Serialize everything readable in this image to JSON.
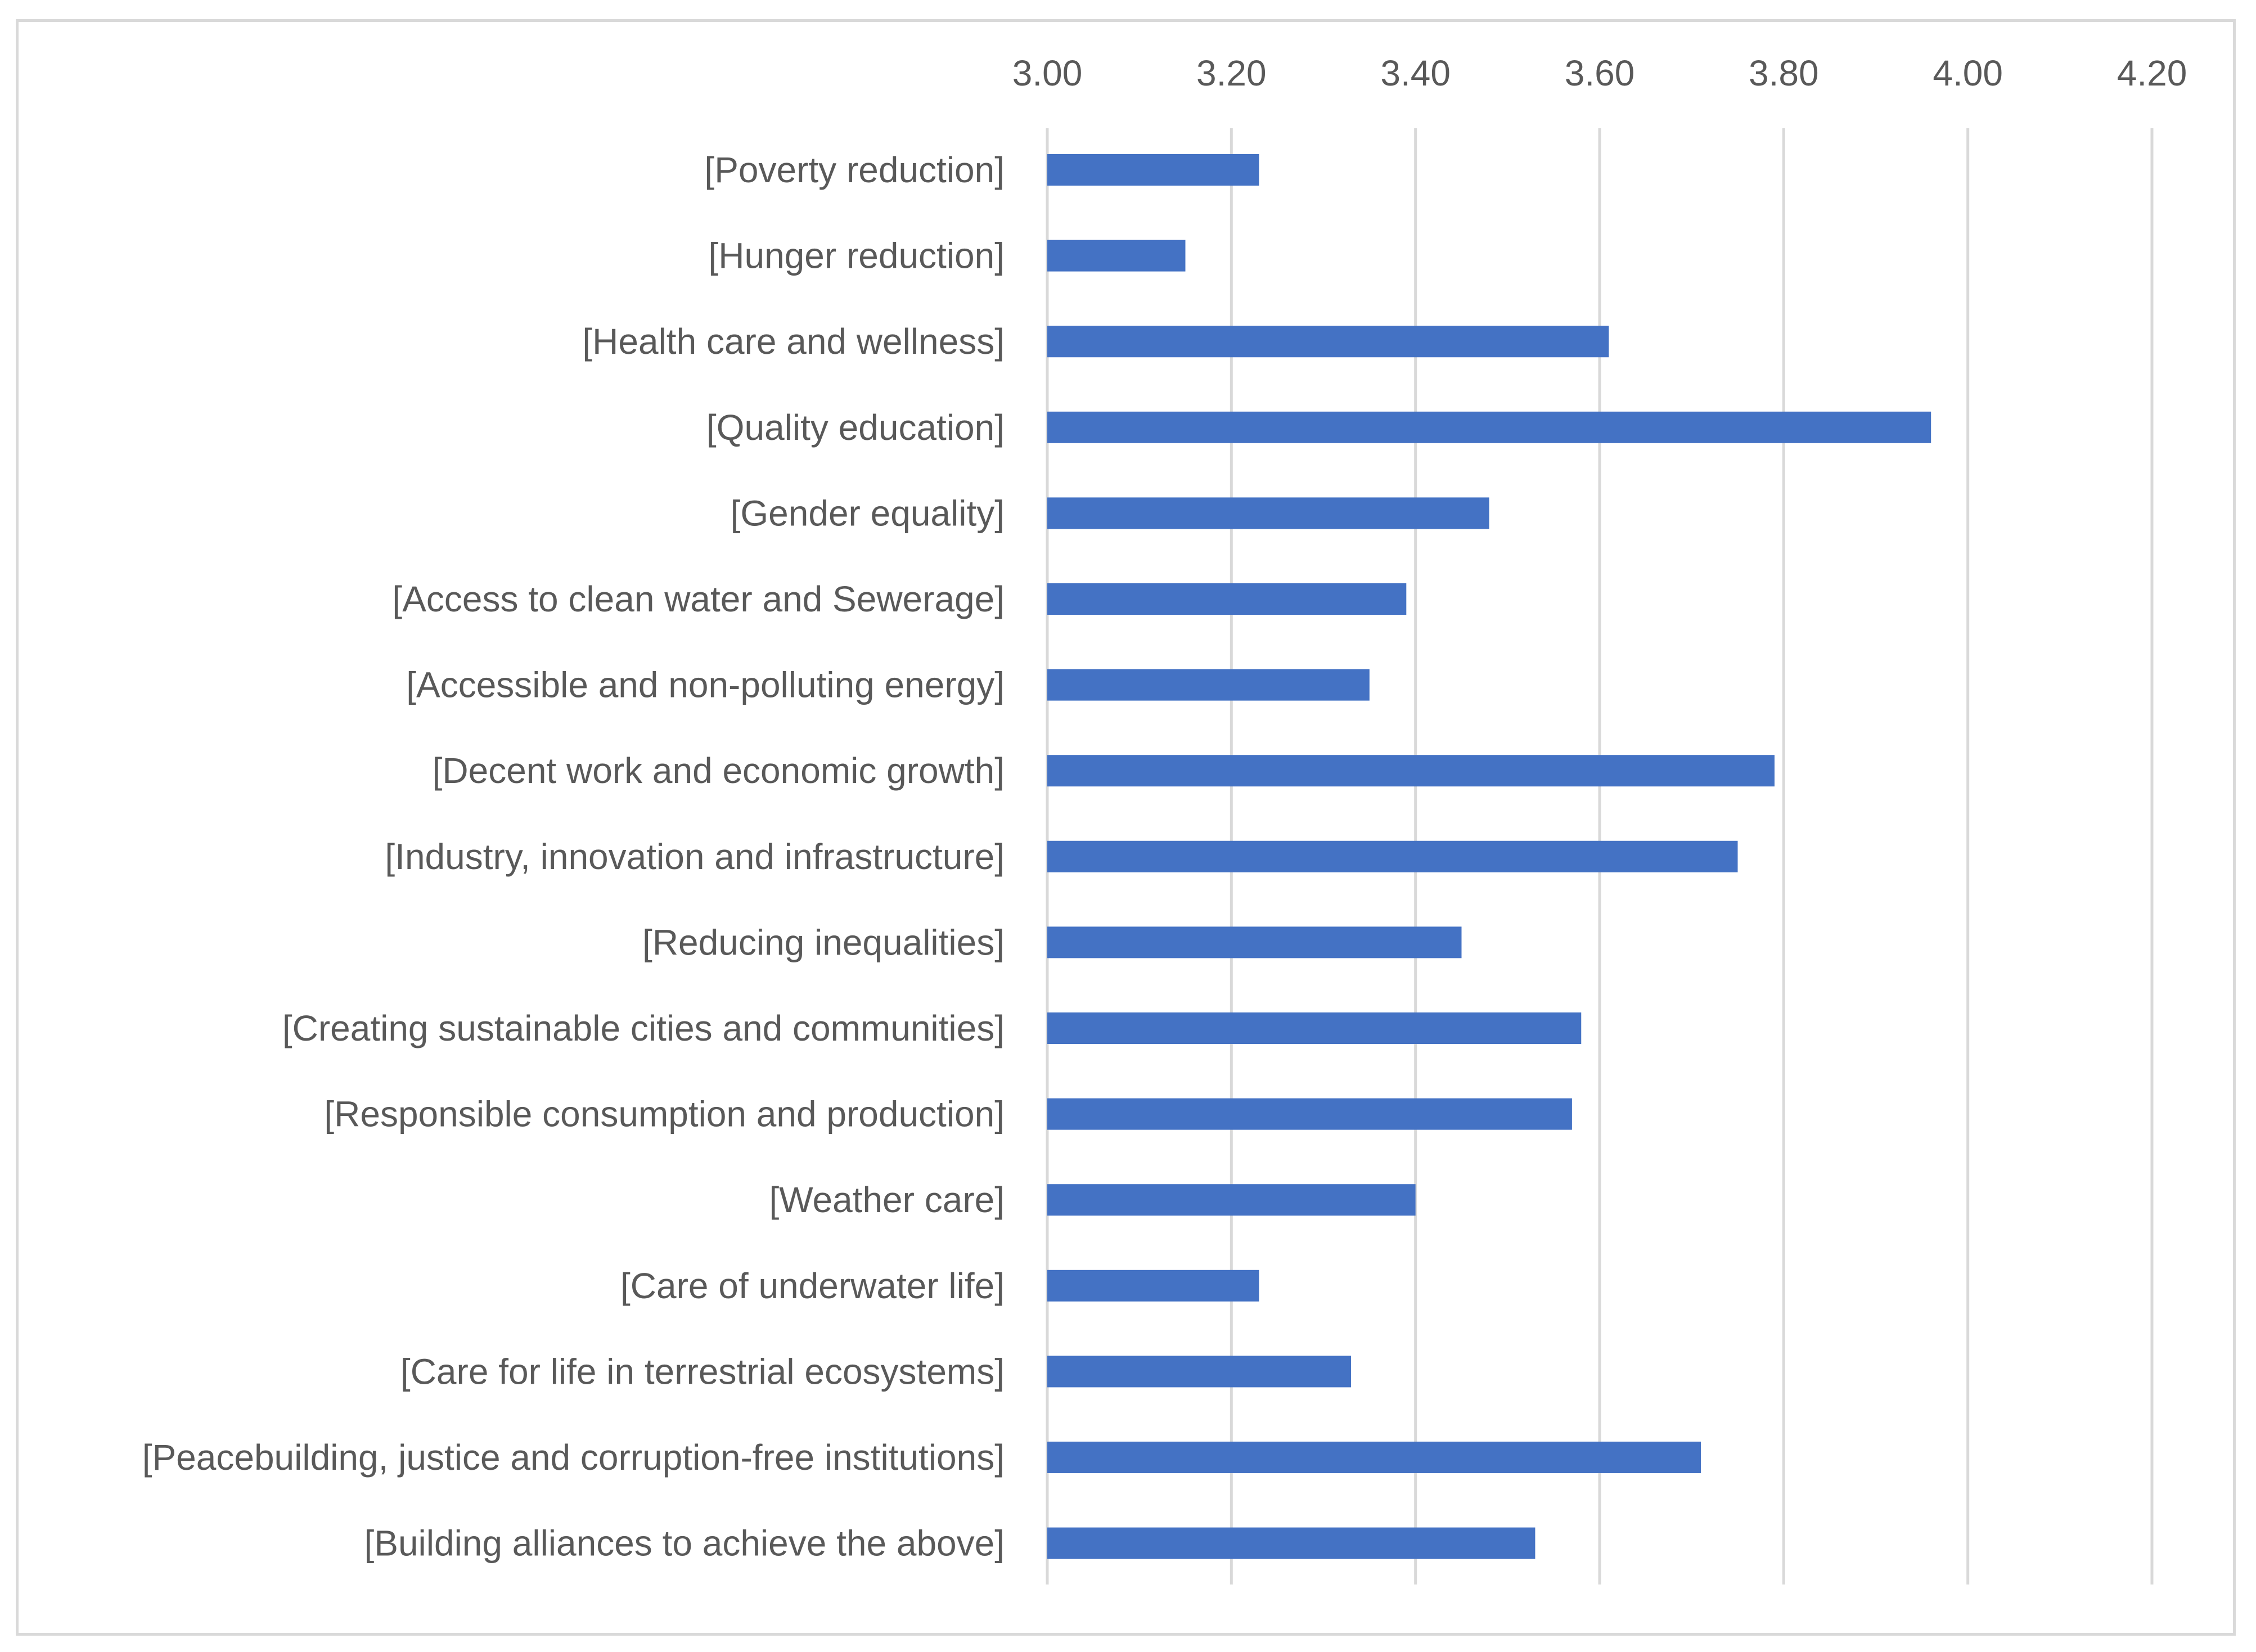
{
  "chart_data": {
    "type": "bar",
    "orientation": "horizontal",
    "title": "",
    "xlabel": "",
    "ylabel": "",
    "xlim": [
      3.0,
      4.2
    ],
    "x_ticks": [
      "3.00",
      "3.20",
      "3.40",
      "3.60",
      "3.80",
      "4.00",
      "4.20"
    ],
    "x_tick_values": [
      3.0,
      3.2,
      3.4,
      3.6,
      3.8,
      4.0,
      4.2
    ],
    "grid": "vertical",
    "axis_position": "top",
    "bar_color": "#4472c4",
    "grid_color": "#d9d9d9",
    "label_color": "#595959",
    "categories": [
      "[Poverty reduction]",
      "[Hunger reduction]",
      "[Health care and wellness]",
      "[Quality education]",
      "[Gender equality]",
      "[Access to clean water and Sewerage]",
      "[Accessible and non-polluting energy]",
      "[Decent work and economic growth]",
      "[Industry, innovation and infrastructure]",
      "[Reducing inequalities]",
      "[Creating sustainable cities and communities]",
      "[Responsible consumption and production]",
      "[Weather care]",
      "[Care of underwater life]",
      "[Care for life in terrestrial ecosystems]",
      "[Peacebuilding, justice and corruption-free institutions]",
      "[Building alliances to achieve the above]"
    ],
    "values": [
      3.23,
      3.15,
      3.61,
      3.96,
      3.48,
      3.39,
      3.35,
      3.79,
      3.75,
      3.45,
      3.58,
      3.57,
      3.4,
      3.23,
      3.33,
      3.71,
      3.53
    ]
  }
}
